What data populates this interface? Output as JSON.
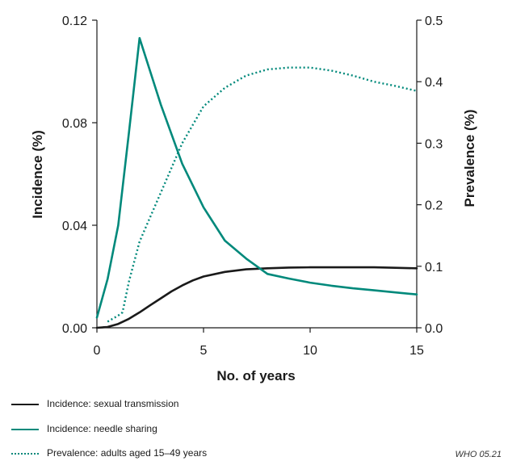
{
  "chart_data": {
    "type": "line",
    "xlabel": "No. of years",
    "ylabel_left": "Incidence (%)",
    "ylabel_right": "Prevalence (%)",
    "xlim": [
      0,
      15
    ],
    "ylim_left": [
      0,
      0.12
    ],
    "ylim_right": [
      0,
      0.5
    ],
    "x_ticks": [
      "0",
      "5",
      "10",
      "15"
    ],
    "y_left_ticks": [
      "0.00",
      "0.04",
      "0.08",
      "0.12"
    ],
    "y_right_ticks": [
      "0.0",
      "0.1",
      "0.2",
      "0.3",
      "0.4",
      "0.5"
    ],
    "grid": false,
    "legend_position": "bottom-left",
    "series": [
      {
        "name": "Incidence: sexual transmission",
        "axis": "left",
        "color": "#1a1a1a",
        "style": "solid",
        "x": [
          0,
          0.5,
          1,
          1.5,
          2,
          2.5,
          3,
          3.5,
          4,
          4.5,
          5,
          6,
          7,
          8,
          9,
          10,
          11,
          12,
          13,
          14,
          15
        ],
        "y": [
          0.0,
          0.0003,
          0.0015,
          0.0035,
          0.006,
          0.0088,
          0.0115,
          0.0142,
          0.0165,
          0.0185,
          0.02,
          0.0218,
          0.0228,
          0.0232,
          0.0235,
          0.0236,
          0.0236,
          0.0236,
          0.0236,
          0.0234,
          0.0232
        ]
      },
      {
        "name": "Incidence: needle sharing",
        "axis": "left",
        "color": "#00897b",
        "style": "solid",
        "x": [
          0,
          0.5,
          1,
          1.5,
          2,
          3,
          4,
          5,
          6,
          7,
          8,
          9,
          10,
          11,
          12,
          13,
          14,
          15
        ],
        "y": [
          0.004,
          0.019,
          0.04,
          0.076,
          0.113,
          0.087,
          0.064,
          0.047,
          0.034,
          0.027,
          0.021,
          0.0192,
          0.0176,
          0.0164,
          0.0154,
          0.0146,
          0.0138,
          0.013
        ]
      },
      {
        "name": "Prevalence: adults aged 15–49 years",
        "axis": "right",
        "color": "#00897b",
        "style": "dotted",
        "x": [
          0.5,
          1,
          1.2,
          1.5,
          2,
          2.5,
          3,
          4,
          5,
          6,
          7,
          8,
          9,
          10,
          11,
          12,
          13,
          14,
          15
        ],
        "y": [
          0.01,
          0.02,
          0.025,
          0.075,
          0.14,
          0.18,
          0.22,
          0.3,
          0.36,
          0.39,
          0.41,
          0.42,
          0.423,
          0.423,
          0.418,
          0.41,
          0.4,
          0.393,
          0.385
        ]
      }
    ]
  },
  "footer": {
    "code": "WHO 05.21"
  }
}
